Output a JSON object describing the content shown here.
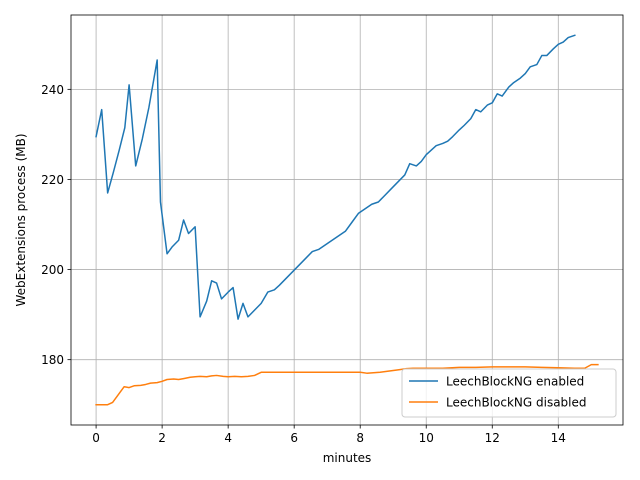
{
  "chart_data": {
    "type": "line",
    "xlabel": "minutes",
    "ylabel": "WebExtensions process (MB)",
    "xlim": [
      -0.76,
      15.96
    ],
    "ylim": [
      165.5,
      256.5
    ],
    "xticks": [
      0,
      2,
      4,
      6,
      8,
      10,
      12,
      14
    ],
    "yticks": [
      180,
      200,
      220,
      240
    ],
    "grid": true,
    "legend_position": "lower-right",
    "series": [
      {
        "name": "LeechBlockNG enabled",
        "color": "#1f77b4",
        "x": [
          0,
          0.17,
          0.35,
          0.52,
          0.7,
          0.87,
          1.0,
          1.2,
          1.4,
          1.6,
          1.85,
          1.95,
          2.15,
          2.3,
          2.5,
          2.65,
          2.8,
          3.0,
          3.15,
          3.35,
          3.5,
          3.65,
          3.8,
          4.0,
          4.15,
          4.3,
          4.45,
          4.6,
          4.8,
          5.0,
          5.2,
          5.4,
          5.55,
          5.75,
          5.95,
          6.15,
          6.35,
          6.55,
          6.75,
          6.95,
          7.15,
          7.35,
          7.55,
          7.75,
          7.95,
          8.15,
          8.35,
          8.55,
          8.75,
          8.95,
          9.15,
          9.35,
          9.5,
          9.7,
          9.85,
          10.0,
          10.15,
          10.3,
          10.5,
          10.65,
          10.8,
          11.0,
          11.15,
          11.35,
          11.5,
          11.65,
          11.85,
          12.0,
          12.15,
          12.3,
          12.5,
          12.65,
          12.85,
          13.0,
          13.15,
          13.35,
          13.5,
          13.65,
          13.85,
          14.0,
          14.15,
          14.3,
          14.5
        ],
        "y": [
          229.5,
          235.5,
          217,
          221.5,
          226.5,
          231.5,
          241,
          223,
          229,
          236,
          246.5,
          215,
          203.5,
          205,
          206.5,
          211,
          208,
          209.5,
          189.5,
          193,
          197.5,
          197,
          193.5,
          195,
          196,
          189,
          192.5,
          189.5,
          191,
          192.5,
          195,
          195.5,
          196.5,
          198,
          199.5,
          201,
          202.5,
          204,
          204.5,
          205.5,
          206.5,
          207.5,
          208.5,
          210.5,
          212.5,
          213.5,
          214.5,
          215,
          216.5,
          218,
          219.5,
          221,
          223.5,
          223,
          224,
          225.5,
          226.5,
          227.5,
          228,
          228.5,
          229.5,
          231,
          232,
          233.5,
          235.5,
          235,
          236.5,
          237,
          239,
          238.5,
          240.5,
          241.5,
          242.5,
          243.5,
          245,
          245.5,
          247.5,
          247.5,
          249,
          250,
          250.5,
          251.5,
          252
        ]
      },
      {
        "name": "LeechBlockNG disabled",
        "color": "#ff7f0e",
        "x": [
          0,
          0.2,
          0.35,
          0.5,
          0.65,
          0.85,
          1.0,
          1.15,
          1.35,
          1.5,
          1.65,
          1.85,
          2.0,
          2.15,
          2.35,
          2.5,
          2.65,
          2.85,
          3.0,
          3.15,
          3.35,
          3.5,
          3.65,
          3.85,
          4.0,
          4.2,
          4.4,
          4.6,
          4.8,
          5.0,
          5.5,
          6.0,
          6.5,
          7.0,
          7.5,
          8.0,
          8.2,
          8.4,
          8.6,
          8.8,
          9.0,
          9.2,
          9.4,
          9.6,
          9.8,
          10.0,
          10.5,
          11.0,
          11.5,
          12.0,
          12.5,
          13.0,
          13.5,
          14.0,
          14.5,
          14.8,
          15.0,
          15.2
        ],
        "y": [
          170,
          170,
          170,
          170.5,
          172,
          174,
          173.8,
          174.2,
          174.3,
          174.5,
          174.8,
          174.9,
          175.2,
          175.6,
          175.7,
          175.6,
          175.8,
          176.1,
          176.2,
          176.3,
          176.2,
          176.4,
          176.5,
          176.3,
          176.2,
          176.3,
          176.2,
          176.3,
          176.5,
          177.2,
          177.2,
          177.2,
          177.2,
          177.2,
          177.2,
          177.2,
          177,
          177.1,
          177.2,
          177.4,
          177.6,
          177.8,
          178,
          178.1,
          178.1,
          178.1,
          178.1,
          178.3,
          178.3,
          178.4,
          178.4,
          178.4,
          178.3,
          178.2,
          178.1,
          178.1,
          178.9,
          178.9
        ]
      }
    ]
  }
}
